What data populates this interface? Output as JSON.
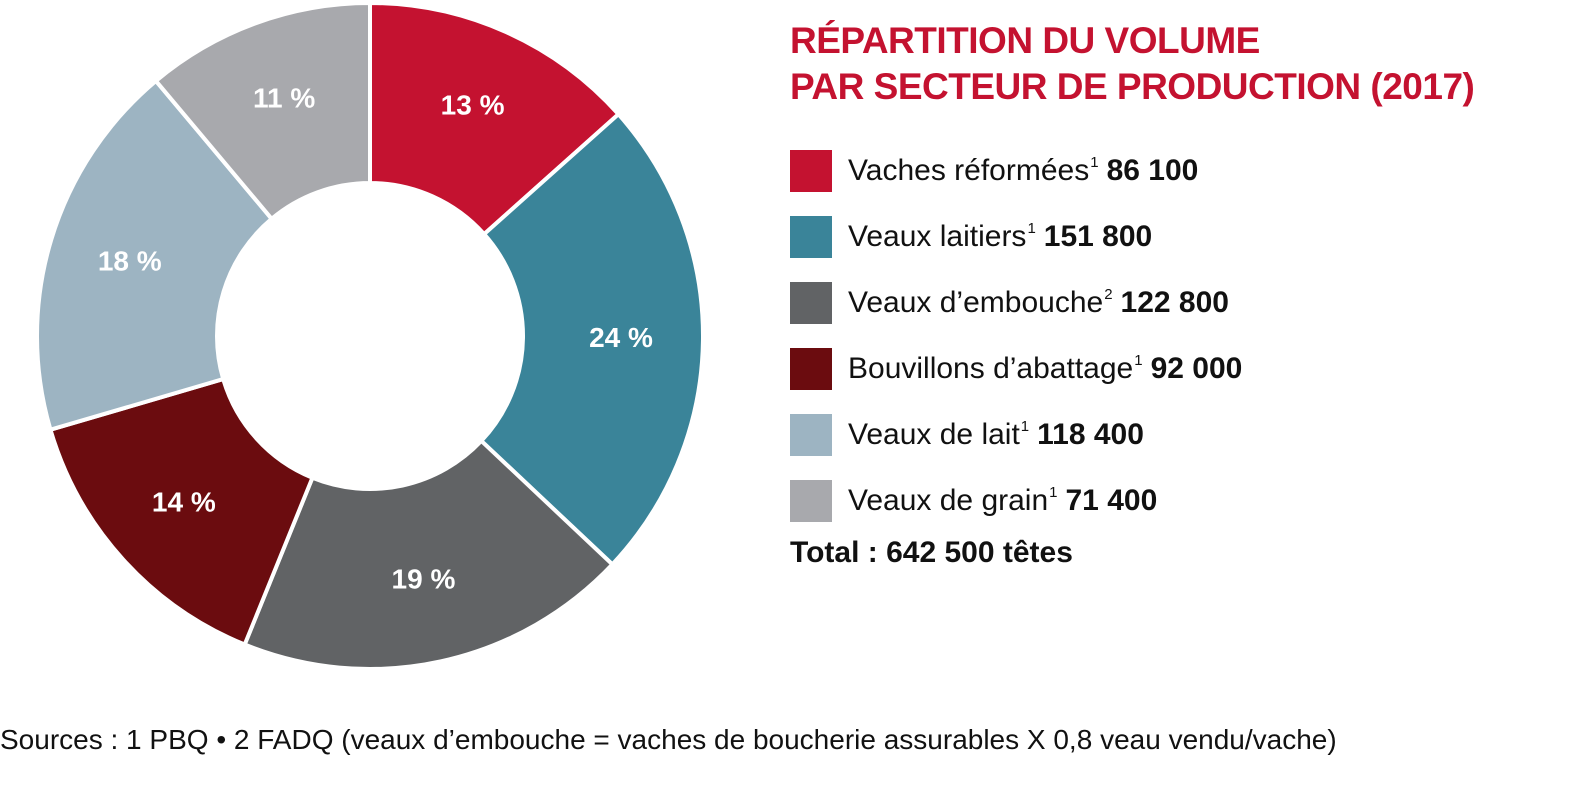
{
  "title_lines": [
    "RÉPARTITION DU VOLUME",
    "PAR SECTEUR DE PRODUCTION (2017)"
  ],
  "chart_data": {
    "type": "pie",
    "title": "RÉPARTITION DU VOLUME PAR SECTEUR DE PRODUCTION (2017)",
    "legend_position": "right",
    "slices": [
      {
        "label": "Vaches réformées",
        "note": "1",
        "value": 86100,
        "value_text": "86 100",
        "percent": 13,
        "percent_label": "13 %",
        "color": "#c41230"
      },
      {
        "label": "Veaux laitiers",
        "note": "1",
        "value": 151800,
        "value_text": "151 800",
        "percent": 24,
        "percent_label": "24 %",
        "color": "#3a8499"
      },
      {
        "label": "Veaux d’embouche",
        "note": "2",
        "value": 122800,
        "value_text": "122 800",
        "percent": 19,
        "percent_label": "19 %",
        "color": "#616365"
      },
      {
        "label": "Bouvillons d’abattage",
        "note": "1",
        "value": 92000,
        "value_text": "92 000",
        "percent": 14,
        "percent_label": "14 %",
        "color": "#6b0c0f"
      },
      {
        "label": "Veaux de lait",
        "note": "1",
        "value": 118400,
        "value_text": "118 400",
        "percent": 18,
        "percent_label": "18 %",
        "color": "#9db4c2"
      },
      {
        "label": "Veaux de grain",
        "note": "1",
        "value": 71400,
        "value_text": "71 400",
        "percent": 11,
        "percent_label": "11 %",
        "color": "#a8a9ad"
      }
    ],
    "total_text": "Total : 642 500 têtes"
  },
  "sources": "Sources : 1 PBQ • 2 FADQ (veaux d’embouche = vaches de boucherie assurables X 0,8 veau vendu/vache)"
}
